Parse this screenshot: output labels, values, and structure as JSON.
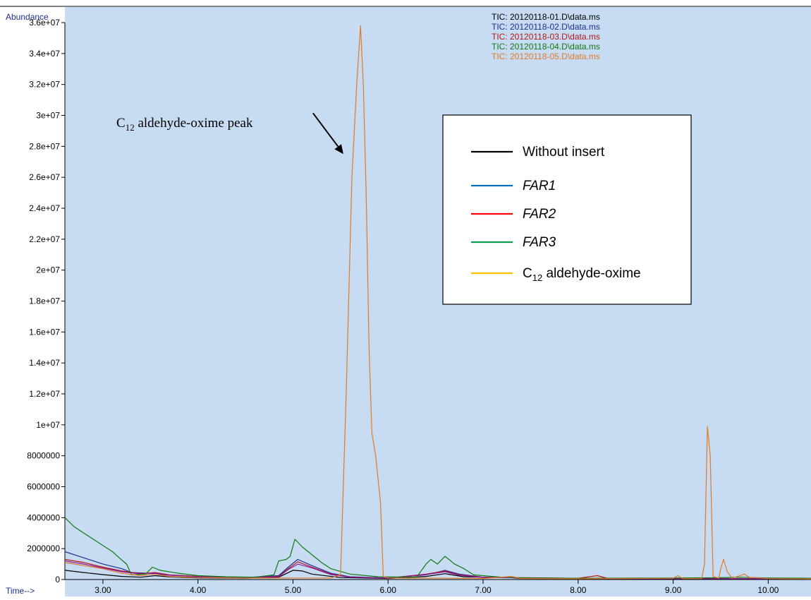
{
  "chart_data": {
    "type": "line",
    "title": "",
    "y_axis_title": "Abundance",
    "x_axis_title": "Time-->",
    "xlim": [
      2.6,
      10.45
    ],
    "ylim": [
      0,
      36000000
    ],
    "x_ticks": [
      {
        "value": 3.0,
        "label": "3.00"
      },
      {
        "value": 4.0,
        "label": "4.00"
      },
      {
        "value": 5.0,
        "label": "5.00"
      },
      {
        "value": 6.0,
        "label": "6.00"
      },
      {
        "value": 7.0,
        "label": "7.00"
      },
      {
        "value": 8.0,
        "label": "8.00"
      },
      {
        "value": 9.0,
        "label": "9.00"
      },
      {
        "value": 10.0,
        "label": "10.00"
      }
    ],
    "y_ticks": [
      {
        "value": 0,
        "label": "0"
      },
      {
        "value": 2000000,
        "label": "2000000"
      },
      {
        "value": 4000000,
        "label": "4000000"
      },
      {
        "value": 6000000,
        "label": "6000000"
      },
      {
        "value": 8000000,
        "label": "8000000"
      },
      {
        "value": 10000000,
        "label": "1e+07"
      },
      {
        "value": 12000000,
        "label": "1.2e+07"
      },
      {
        "value": 14000000,
        "label": "1.4e+07"
      },
      {
        "value": 16000000,
        "label": "1.6e+07"
      },
      {
        "value": 18000000,
        "label": "1.8e+07"
      },
      {
        "value": 20000000,
        "label": "2e+07"
      },
      {
        "value": 22000000,
        "label": "2.2e+07"
      },
      {
        "value": 24000000,
        "label": "2.4e+07"
      },
      {
        "value": 26000000,
        "label": "2.6e+07"
      },
      {
        "value": 28000000,
        "label": "2.8e+07"
      },
      {
        "value": 30000000,
        "label": "3e+07"
      },
      {
        "value": 32000000,
        "label": "3.2e+07"
      },
      {
        "value": 34000000,
        "label": "3.4e+07"
      },
      {
        "value": 36000000,
        "label": "3.6e+07"
      }
    ],
    "file_labels": [
      {
        "text": "TIC: 20120118-01.D\\data.ms",
        "color": "#000000"
      },
      {
        "text": "TIC: 20120118-02.D\\data.ms",
        "color": "#1f2f8f"
      },
      {
        "text": "TIC: 20120118-03.D\\data.ms",
        "color": "#b01818"
      },
      {
        "text": "TIC: 20120118-04.D\\data.ms",
        "color": "#107a10"
      },
      {
        "text": "TIC: 20120118-05.D\\data.ms",
        "color": "#e07a28"
      }
    ],
    "legend": {
      "placement": "upper-right",
      "entries": [
        {
          "label": "Without insert",
          "color": "#000000",
          "italic": false,
          "subscript_label": null
        },
        {
          "label": "FAR1",
          "color": "#0070c0",
          "italic": true,
          "subscript_label": null
        },
        {
          "label": "FAR2",
          "color": "#ff0000",
          "italic": true,
          "subscript_label": null
        },
        {
          "label": "FAR3",
          "color": "#00a050",
          "italic": true,
          "subscript_label": null
        },
        {
          "label": "",
          "color": "#ffc000",
          "italic": false,
          "subscript_label": {
            "pre": "C",
            "sub": "12",
            "post": " aldehyde-oxime"
          }
        }
      ]
    },
    "annotation": {
      "pre": "C",
      "sub": "12",
      "post": " aldehyde-oxime peak",
      "target_x": 5.53,
      "target_y": 27500000
    },
    "series": [
      {
        "color": "#000000",
        "points": [
          [
            2.6,
            600000
          ],
          [
            2.8,
            450000
          ],
          [
            3.0,
            320000
          ],
          [
            3.2,
            200000
          ],
          [
            3.4,
            150000
          ],
          [
            3.55,
            250000
          ],
          [
            3.7,
            170000
          ],
          [
            4.0,
            110000
          ],
          [
            4.5,
            80000
          ],
          [
            4.85,
            150000
          ],
          [
            5.0,
            600000
          ],
          [
            5.1,
            550000
          ],
          [
            5.2,
            350000
          ],
          [
            5.5,
            130000
          ],
          [
            6.0,
            70000
          ],
          [
            6.4,
            200000
          ],
          [
            6.6,
            380000
          ],
          [
            6.8,
            180000
          ],
          [
            7.3,
            120000
          ],
          [
            7.4,
            70000
          ],
          [
            8.0,
            60000
          ],
          [
            9.0,
            50000
          ],
          [
            10.45,
            40000
          ]
        ]
      },
      {
        "color": "#1f2f8f",
        "points": [
          [
            2.6,
            1800000
          ],
          [
            2.8,
            1400000
          ],
          [
            3.0,
            1000000
          ],
          [
            3.2,
            700000
          ],
          [
            3.3,
            450000
          ],
          [
            3.5,
            400000
          ],
          [
            3.7,
            280000
          ],
          [
            4.0,
            200000
          ],
          [
            4.5,
            130000
          ],
          [
            4.85,
            250000
          ],
          [
            4.95,
            800000
          ],
          [
            5.05,
            1300000
          ],
          [
            5.2,
            900000
          ],
          [
            5.4,
            400000
          ],
          [
            5.6,
            180000
          ],
          [
            6.0,
            100000
          ],
          [
            6.4,
            300000
          ],
          [
            6.6,
            600000
          ],
          [
            6.75,
            350000
          ],
          [
            7.0,
            150000
          ],
          [
            7.5,
            100000
          ],
          [
            8.0,
            80000
          ],
          [
            9.0,
            60000
          ],
          [
            10.45,
            50000
          ]
        ]
      },
      {
        "color": "#b01818",
        "points": [
          [
            2.6,
            1300000
          ],
          [
            2.8,
            1100000
          ],
          [
            3.0,
            800000
          ],
          [
            3.2,
            550000
          ],
          [
            3.4,
            380000
          ],
          [
            3.55,
            450000
          ],
          [
            3.7,
            300000
          ],
          [
            4.0,
            200000
          ],
          [
            4.5,
            120000
          ],
          [
            4.85,
            200000
          ],
          [
            4.95,
            700000
          ],
          [
            5.05,
            1150000
          ],
          [
            5.2,
            800000
          ],
          [
            5.4,
            350000
          ],
          [
            5.6,
            160000
          ],
          [
            6.0,
            90000
          ],
          [
            6.4,
            350000
          ],
          [
            6.6,
            550000
          ],
          [
            6.75,
            300000
          ],
          [
            7.0,
            140000
          ],
          [
            8.0,
            80000
          ],
          [
            8.2,
            250000
          ],
          [
            8.3,
            90000
          ],
          [
            9.0,
            60000
          ],
          [
            10.45,
            50000
          ]
        ]
      },
      {
        "color": "#8a1a9a",
        "points": [
          [
            2.6,
            1200000
          ],
          [
            2.8,
            1000000
          ],
          [
            3.0,
            750000
          ],
          [
            3.2,
            500000
          ],
          [
            3.4,
            350000
          ],
          [
            3.55,
            420000
          ],
          [
            3.7,
            280000
          ],
          [
            4.0,
            180000
          ],
          [
            4.5,
            110000
          ],
          [
            4.85,
            180000
          ],
          [
            4.95,
            650000
          ],
          [
            5.05,
            1000000
          ],
          [
            5.2,
            750000
          ],
          [
            5.4,
            320000
          ],
          [
            5.6,
            150000
          ],
          [
            6.0,
            85000
          ],
          [
            6.4,
            320000
          ],
          [
            6.6,
            500000
          ],
          [
            6.75,
            280000
          ],
          [
            7.0,
            130000
          ],
          [
            8.0,
            75000
          ],
          [
            9.0,
            55000
          ],
          [
            10.45,
            45000
          ]
        ]
      },
      {
        "color": "#107a10",
        "points": [
          [
            2.6,
            4000000
          ],
          [
            2.7,
            3400000
          ],
          [
            2.9,
            2600000
          ],
          [
            3.1,
            1800000
          ],
          [
            3.2,
            1250000
          ],
          [
            3.25,
            1000000
          ],
          [
            3.3,
            300000
          ],
          [
            3.45,
            350000
          ],
          [
            3.52,
            800000
          ],
          [
            3.6,
            600000
          ],
          [
            3.8,
            400000
          ],
          [
            4.0,
            250000
          ],
          [
            4.3,
            180000
          ],
          [
            4.6,
            150000
          ],
          [
            4.8,
            300000
          ],
          [
            4.85,
            1200000
          ],
          [
            4.93,
            1300000
          ],
          [
            4.97,
            1500000
          ],
          [
            5.02,
            2600000
          ],
          [
            5.1,
            2100000
          ],
          [
            5.2,
            1600000
          ],
          [
            5.3,
            1100000
          ],
          [
            5.4,
            700000
          ],
          [
            5.6,
            350000
          ],
          [
            5.9,
            180000
          ],
          [
            6.3,
            150000
          ],
          [
            6.4,
            1000000
          ],
          [
            6.45,
            1300000
          ],
          [
            6.52,
            1000000
          ],
          [
            6.6,
            1500000
          ],
          [
            6.7,
            1000000
          ],
          [
            6.8,
            700000
          ],
          [
            6.9,
            300000
          ],
          [
            7.2,
            150000
          ],
          [
            7.5,
            100000
          ],
          [
            8.0,
            80000
          ],
          [
            9.0,
            100000
          ],
          [
            9.5,
            120000
          ],
          [
            9.7,
            150000
          ],
          [
            10.0,
            100000
          ],
          [
            10.45,
            80000
          ]
        ]
      },
      {
        "color": "#e07a28",
        "points": [
          [
            2.6,
            1100000
          ],
          [
            2.8,
            900000
          ],
          [
            3.0,
            700000
          ],
          [
            3.2,
            400000
          ],
          [
            3.4,
            250000
          ],
          [
            3.55,
            350000
          ],
          [
            3.7,
            200000
          ],
          [
            4.0,
            130000
          ],
          [
            4.5,
            90000
          ],
          [
            5.0,
            100000
          ],
          [
            5.4,
            100000
          ],
          [
            5.5,
            300000
          ],
          [
            5.56,
            12000000
          ],
          [
            5.62,
            26000000
          ],
          [
            5.67,
            32000000
          ],
          [
            5.71,
            35800000
          ],
          [
            5.74,
            32000000
          ],
          [
            5.77,
            25000000
          ],
          [
            5.8,
            15000000
          ],
          [
            5.83,
            9500000
          ],
          [
            5.87,
            8000000
          ],
          [
            5.92,
            5000000
          ],
          [
            5.95,
            200000
          ],
          [
            6.0,
            100000
          ],
          [
            7.0,
            70000
          ],
          [
            7.3,
            200000
          ],
          [
            7.4,
            70000
          ],
          [
            8.0,
            50000
          ],
          [
            9.0,
            80000
          ],
          [
            9.05,
            250000
          ],
          [
            9.1,
            60000
          ],
          [
            9.3,
            60000
          ],
          [
            9.33,
            1000000
          ],
          [
            9.36,
            9900000
          ],
          [
            9.39,
            8000000
          ],
          [
            9.42,
            200000
          ],
          [
            9.48,
            80000
          ],
          [
            9.5,
            700000
          ],
          [
            9.53,
            1300000
          ],
          [
            9.57,
            500000
          ],
          [
            9.62,
            80000
          ],
          [
            9.75,
            350000
          ],
          [
            9.8,
            150000
          ],
          [
            10.0,
            60000
          ],
          [
            10.45,
            40000
          ]
        ]
      }
    ]
  }
}
